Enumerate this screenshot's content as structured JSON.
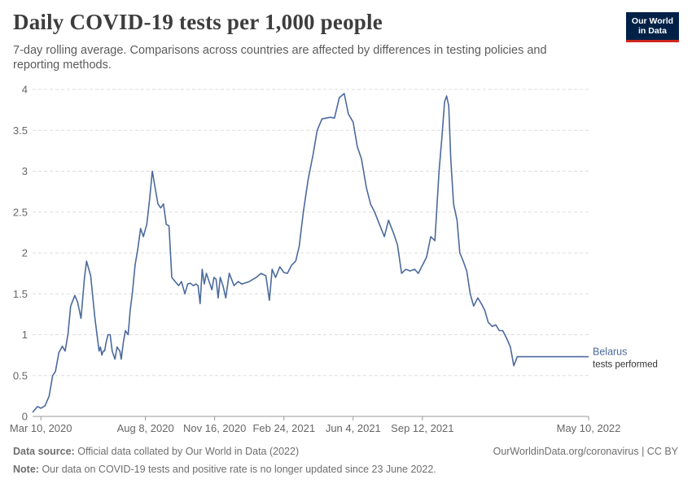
{
  "header": {
    "title": "Daily COVID-19 tests per 1,000 people",
    "subtitle": "7-day rolling average. Comparisons across countries are affected by differences in testing policies and reporting methods."
  },
  "logo": {
    "line1": "Our World",
    "line2": "in Data"
  },
  "footer": {
    "source_label": "Data source:",
    "source_text": "Official data collated by Our World in Data (2022)",
    "url": "OurWorldinData.org/coronavirus | CC BY",
    "note_label": "Note:",
    "note_text": "Our data on COVID-19 tests and positive rate is no longer updated since 23 June 2022."
  },
  "colors": {
    "series": "#4c6a9c",
    "grid": "#dddddd",
    "axis": "#666666"
  },
  "chart_data": {
    "type": "line",
    "title": "Daily COVID-19 tests per 1,000 people",
    "ylim": [
      0,
      4
    ],
    "yticks": [
      0,
      0.5,
      1,
      1.5,
      2,
      2.5,
      3,
      3.5,
      4
    ],
    "ytick_labels": [
      "0",
      "0.5",
      "1",
      "1.5",
      "2",
      "2.5",
      "3",
      "3.5",
      "4"
    ],
    "xlim": [
      "2020-02-27",
      "2022-05-10"
    ],
    "xticks": [
      "2020-03-10",
      "2020-08-08",
      "2020-11-16",
      "2021-02-24",
      "2021-06-04",
      "2021-09-12",
      "2022-05-10"
    ],
    "xtick_labels": [
      "Mar 10, 2020",
      "Aug 8, 2020",
      "Nov 16, 2020",
      "Feb 24, 2021",
      "Jun 4, 2021",
      "Sep 12, 2021",
      "May 10, 2022"
    ],
    "grid": "horizontal dashed",
    "series": [
      {
        "name": "Belarus",
        "sublabel": "tests performed",
        "x": [
          "2020-02-27",
          "2020-03-05",
          "2020-03-10",
          "2020-03-16",
          "2020-03-22",
          "2020-03-27",
          "2020-03-31",
          "2020-04-05",
          "2020-04-10",
          "2020-04-14",
          "2020-04-18",
          "2020-04-22",
          "2020-04-28",
          "2020-05-02",
          "2020-05-07",
          "2020-05-12",
          "2020-05-15",
          "2020-05-21",
          "2020-05-27",
          "2020-06-02",
          "2020-06-04",
          "2020-06-06",
          "2020-06-08",
          "2020-06-10",
          "2020-06-12",
          "2020-06-15",
          "2020-06-18",
          "2020-06-21",
          "2020-06-25",
          "2020-06-28",
          "2020-07-02",
          "2020-07-04",
          "2020-07-07",
          "2020-07-10",
          "2020-07-14",
          "2020-07-17",
          "2020-07-20",
          "2020-07-24",
          "2020-07-28",
          "2020-08-01",
          "2020-08-05",
          "2020-08-10",
          "2020-08-14",
          "2020-08-18",
          "2020-08-22",
          "2020-08-26",
          "2020-08-30",
          "2020-09-03",
          "2020-09-07",
          "2020-09-11",
          "2020-09-15",
          "2020-09-20",
          "2020-09-25",
          "2020-09-29",
          "2020-10-04",
          "2020-10-08",
          "2020-10-12",
          "2020-10-16",
          "2020-10-20",
          "2020-10-23",
          "2020-10-26",
          "2020-10-29",
          "2020-11-01",
          "2020-11-04",
          "2020-11-08",
          "2020-11-12",
          "2020-11-15",
          "2020-11-18",
          "2020-11-21",
          "2020-11-24",
          "2020-11-28",
          "2020-12-02",
          "2020-12-07",
          "2020-12-14",
          "2020-12-20",
          "2020-12-25",
          "2021-01-05",
          "2021-01-15",
          "2021-01-22",
          "2021-01-29",
          "2021-02-03",
          "2021-02-07",
          "2021-02-12",
          "2021-02-18",
          "2021-02-24",
          "2021-03-01",
          "2021-03-07",
          "2021-03-13",
          "2021-03-18",
          "2021-03-24",
          "2021-03-31",
          "2021-04-07",
          "2021-04-13",
          "2021-04-20",
          "2021-04-26",
          "2021-05-02",
          "2021-05-08",
          "2021-05-15",
          "2021-05-22",
          "2021-05-28",
          "2021-06-04",
          "2021-06-10",
          "2021-06-16",
          "2021-06-23",
          "2021-06-29",
          "2021-07-05",
          "2021-07-12",
          "2021-07-19",
          "2021-07-25",
          "2021-08-01",
          "2021-08-07",
          "2021-08-13",
          "2021-08-19",
          "2021-08-25",
          "2021-09-01",
          "2021-09-06",
          "2021-09-12",
          "2021-09-18",
          "2021-09-24",
          "2021-09-30",
          "2021-10-06",
          "2021-10-10",
          "2021-10-14",
          "2021-10-17",
          "2021-10-20",
          "2021-10-23",
          "2021-10-27",
          "2021-11-01",
          "2021-11-05",
          "2021-11-10",
          "2021-11-15",
          "2021-11-20",
          "2021-11-25",
          "2021-12-01",
          "2021-12-06",
          "2021-12-11",
          "2021-12-16",
          "2021-12-22",
          "2021-12-27",
          "2022-01-01",
          "2022-01-06",
          "2022-01-12",
          "2022-01-17",
          "2022-01-22",
          "2022-01-27",
          "2022-02-02",
          "2022-02-06",
          "2022-02-10",
          "2022-02-14",
          "2022-02-19",
          "2022-02-25",
          "2022-03-03",
          "2022-03-10",
          "2022-03-17",
          "2022-03-24",
          "2022-03-31",
          "2022-04-07",
          "2022-04-14",
          "2022-04-21",
          "2022-04-28",
          "2022-05-03",
          "2022-05-07",
          "2022-05-10"
        ],
        "y": [
          0.05,
          0.12,
          0.1,
          0.13,
          0.25,
          0.5,
          0.55,
          0.78,
          0.86,
          0.8,
          1.0,
          1.35,
          1.48,
          1.4,
          1.2,
          1.7,
          1.9,
          1.72,
          1.2,
          0.8,
          0.85,
          0.75,
          0.8,
          0.8,
          0.9,
          1.0,
          1.0,
          0.8,
          0.7,
          0.85,
          0.8,
          0.7,
          0.9,
          1.05,
          1.0,
          1.3,
          1.5,
          1.85,
          2.05,
          2.3,
          2.2,
          2.35,
          2.65,
          3.0,
          2.8,
          2.6,
          2.55,
          2.6,
          2.35,
          2.33,
          1.7,
          1.65,
          1.6,
          1.65,
          1.5,
          1.62,
          1.63,
          1.6,
          1.62,
          1.6,
          1.38,
          1.8,
          1.62,
          1.75,
          1.65,
          1.55,
          1.7,
          1.68,
          1.45,
          1.7,
          1.6,
          1.45,
          1.75,
          1.6,
          1.65,
          1.62,
          1.65,
          1.7,
          1.75,
          1.72,
          1.42,
          1.8,
          1.7,
          1.83,
          1.76,
          1.75,
          1.85,
          1.9,
          2.08,
          2.5,
          2.9,
          3.2,
          3.5,
          3.64,
          3.65,
          3.66,
          3.65,
          3.9,
          3.95,
          3.7,
          3.6,
          3.3,
          3.15,
          2.8,
          2.6,
          2.5,
          2.35,
          2.2,
          2.4,
          2.25,
          2.1,
          1.75,
          1.8,
          1.78,
          1.8,
          1.75,
          1.85,
          1.95,
          2.2,
          2.15,
          3.0,
          3.4,
          3.85,
          3.92,
          3.8,
          3.15,
          2.6,
          2.4,
          2.0,
          1.9,
          1.78,
          1.5,
          1.35,
          1.45,
          1.38,
          1.3,
          1.15,
          1.1,
          1.12,
          1.05,
          1.05,
          0.95,
          0.85,
          0.62,
          0.73,
          0.73,
          0.73,
          0.73,
          0.73,
          0.73,
          0.73,
          0.73,
          0.73,
          0.73,
          0.73,
          0.73,
          0.73,
          0.73,
          0.73,
          0.73,
          0.73,
          0.73,
          0.73
        ]
      }
    ],
    "annotations": []
  }
}
